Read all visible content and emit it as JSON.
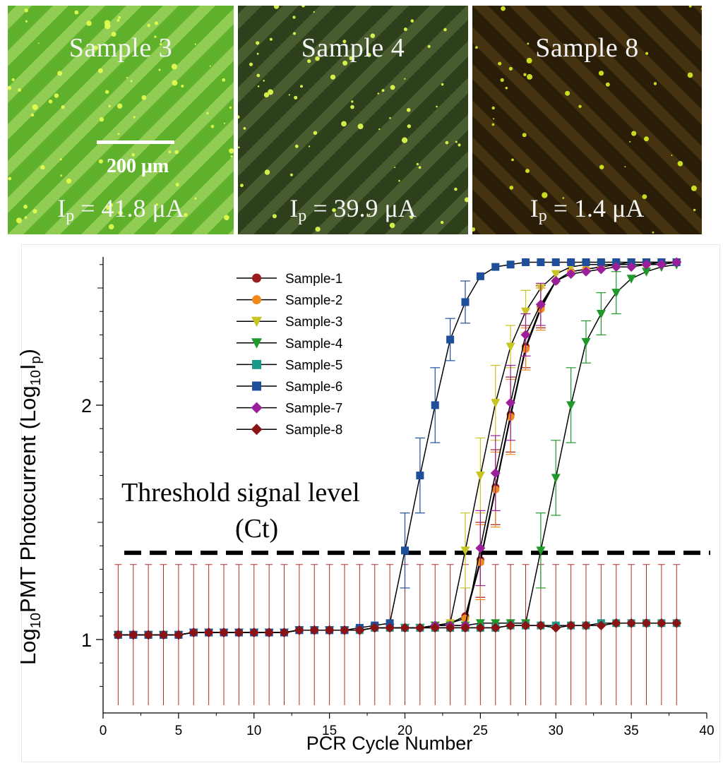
{
  "panels": [
    {
      "title": "Sample 3",
      "ip_prefix": "I",
      "ip_sub": "p",
      "ip_value": " = 41.8 μA",
      "tint": "#5fb02a",
      "stripe": "#9ad25c"
    },
    {
      "title": "Sample 4",
      "ip_prefix": "I",
      "ip_sub": "p",
      "ip_value": " = 39.9 μA",
      "tint": "#2e3f1c",
      "stripe": "#4d6232"
    },
    {
      "title": "Sample 8",
      "ip_prefix": "I",
      "ip_sub": "p",
      "ip_value": " = 1.4 μA",
      "tint": "#2a1d07",
      "stripe": "#4a3712"
    }
  ],
  "scale_bar_label": "200 μm",
  "threshold_label_line1": "Threshold signal level",
  "threshold_label_line2": "(Ct)",
  "ylabel_parts": {
    "log": "Log",
    "sub10": "10",
    "main": "PMT Photocurrent (Log",
    "sub10b": "10",
    "i": "I",
    "subp": "p",
    "close": ")"
  },
  "chart_data": {
    "type": "line",
    "xlabel": "PCR Cycle Number",
    "ylabel": "Log10PMT Photocurrent (Log10Ip)",
    "xlim": [
      0,
      40
    ],
    "ylim": [
      0.72,
      2.65
    ],
    "xticks": [
      0,
      5,
      10,
      15,
      20,
      25,
      30,
      35,
      40
    ],
    "yticks": [
      1,
      2
    ],
    "threshold": 1.37,
    "legend_position": "top-left",
    "series": [
      {
        "name": "Sample-1",
        "color": "#9b1c1c",
        "marker": "circle",
        "x": [
          1,
          2,
          3,
          4,
          5,
          6,
          7,
          8,
          9,
          10,
          11,
          12,
          13,
          14,
          15,
          16,
          17,
          18,
          19,
          20,
          21,
          22,
          23,
          24,
          25,
          26,
          27,
          28,
          29,
          30,
          31,
          32,
          33,
          34,
          35,
          36,
          37,
          38
        ],
        "y": [
          1.02,
          1.02,
          1.02,
          1.02,
          1.02,
          1.03,
          1.03,
          1.03,
          1.03,
          1.03,
          1.03,
          1.03,
          1.04,
          1.04,
          1.04,
          1.04,
          1.04,
          1.05,
          1.05,
          1.05,
          1.05,
          1.06,
          1.07,
          1.1,
          1.34,
          1.65,
          1.96,
          2.25,
          2.42,
          2.53,
          2.57,
          2.58,
          2.59,
          2.6,
          2.6,
          2.6,
          2.61,
          2.61
        ]
      },
      {
        "name": "Sample-2",
        "color": "#f08a1c",
        "marker": "circle",
        "x": [
          1,
          2,
          3,
          4,
          5,
          6,
          7,
          8,
          9,
          10,
          11,
          12,
          13,
          14,
          15,
          16,
          17,
          18,
          19,
          20,
          21,
          22,
          23,
          24,
          25,
          26,
          27,
          28,
          29,
          30,
          31,
          32,
          33,
          34,
          35,
          36,
          37,
          38
        ],
        "y": [
          1.02,
          1.02,
          1.02,
          1.02,
          1.02,
          1.03,
          1.03,
          1.03,
          1.03,
          1.03,
          1.03,
          1.03,
          1.04,
          1.04,
          1.04,
          1.04,
          1.04,
          1.05,
          1.05,
          1.05,
          1.05,
          1.06,
          1.07,
          1.09,
          1.33,
          1.64,
          1.95,
          2.24,
          2.41,
          2.53,
          2.57,
          2.58,
          2.59,
          2.6,
          2.6,
          2.6,
          2.61,
          2.61
        ]
      },
      {
        "name": "Sample-3",
        "color": "#c8c422",
        "marker": "triangle-down",
        "x": [
          1,
          2,
          3,
          4,
          5,
          6,
          7,
          8,
          9,
          10,
          11,
          12,
          13,
          14,
          15,
          16,
          17,
          18,
          19,
          20,
          21,
          22,
          23,
          24,
          25,
          26,
          27,
          28,
          29,
          30,
          31,
          32,
          33,
          34,
          35,
          36,
          37,
          38
        ],
        "y": [
          1.02,
          1.02,
          1.02,
          1.02,
          1.02,
          1.03,
          1.03,
          1.03,
          1.03,
          1.03,
          1.03,
          1.03,
          1.04,
          1.04,
          1.04,
          1.04,
          1.04,
          1.05,
          1.05,
          1.05,
          1.05,
          1.06,
          1.07,
          1.38,
          1.7,
          2.01,
          2.25,
          2.4,
          2.5,
          2.56,
          2.59,
          2.6,
          2.6,
          2.6,
          2.61,
          2.61,
          2.61,
          2.61
        ]
      },
      {
        "name": "Sample-4",
        "color": "#1f9a2a",
        "marker": "triangle-down",
        "x": [
          1,
          2,
          3,
          4,
          5,
          6,
          7,
          8,
          9,
          10,
          11,
          12,
          13,
          14,
          15,
          16,
          17,
          18,
          19,
          20,
          21,
          22,
          23,
          24,
          25,
          26,
          27,
          28,
          29,
          30,
          31,
          32,
          33,
          34,
          35,
          36,
          37,
          38
        ],
        "y": [
          1.02,
          1.02,
          1.02,
          1.02,
          1.02,
          1.03,
          1.03,
          1.03,
          1.03,
          1.03,
          1.03,
          1.03,
          1.04,
          1.04,
          1.04,
          1.04,
          1.04,
          1.05,
          1.05,
          1.05,
          1.05,
          1.06,
          1.06,
          1.06,
          1.07,
          1.07,
          1.07,
          1.07,
          1.38,
          1.69,
          2.0,
          2.27,
          2.39,
          2.48,
          2.54,
          2.57,
          2.59,
          2.6
        ]
      },
      {
        "name": "Sample-5",
        "color": "#1b9a8a",
        "marker": "square",
        "x": [
          1,
          2,
          3,
          4,
          5,
          6,
          7,
          8,
          9,
          10,
          11,
          12,
          13,
          14,
          15,
          16,
          17,
          18,
          19,
          20,
          21,
          22,
          23,
          24,
          25,
          26,
          27,
          28,
          29,
          30,
          31,
          32,
          33,
          34,
          35,
          36,
          37,
          38
        ],
        "y": [
          1.02,
          1.02,
          1.02,
          1.02,
          1.02,
          1.03,
          1.03,
          1.03,
          1.03,
          1.03,
          1.03,
          1.03,
          1.04,
          1.04,
          1.04,
          1.04,
          1.04,
          1.05,
          1.05,
          1.05,
          1.05,
          1.05,
          1.05,
          1.05,
          1.05,
          1.05,
          1.06,
          1.06,
          1.06,
          1.06,
          1.06,
          1.06,
          1.07,
          1.07,
          1.07,
          1.07,
          1.07,
          1.07
        ]
      },
      {
        "name": "Sample-6",
        "color": "#1f4f9a",
        "marker": "square",
        "x": [
          1,
          2,
          3,
          4,
          5,
          6,
          7,
          8,
          9,
          10,
          11,
          12,
          13,
          14,
          15,
          16,
          17,
          18,
          19,
          20,
          21,
          22,
          23,
          24,
          25,
          26,
          27,
          28,
          29,
          30,
          31,
          32,
          33,
          34,
          35,
          36,
          37,
          38
        ],
        "y": [
          1.02,
          1.02,
          1.02,
          1.02,
          1.02,
          1.03,
          1.03,
          1.03,
          1.03,
          1.03,
          1.03,
          1.03,
          1.04,
          1.04,
          1.04,
          1.04,
          1.05,
          1.06,
          1.07,
          1.38,
          1.7,
          2.0,
          2.28,
          2.44,
          2.55,
          2.59,
          2.6,
          2.61,
          2.61,
          2.61,
          2.61,
          2.61,
          2.61,
          2.61,
          2.61,
          2.61,
          2.61,
          2.61
        ]
      },
      {
        "name": "Sample-7",
        "color": "#9b1f9b",
        "marker": "diamond",
        "x": [
          1,
          2,
          3,
          4,
          5,
          6,
          7,
          8,
          9,
          10,
          11,
          12,
          13,
          14,
          15,
          16,
          17,
          18,
          19,
          20,
          21,
          22,
          23,
          24,
          25,
          26,
          27,
          28,
          29,
          30,
          31,
          32,
          33,
          34,
          35,
          36,
          37,
          38
        ],
        "y": [
          1.02,
          1.02,
          1.02,
          1.02,
          1.02,
          1.03,
          1.03,
          1.03,
          1.03,
          1.03,
          1.03,
          1.03,
          1.04,
          1.04,
          1.04,
          1.04,
          1.04,
          1.05,
          1.05,
          1.05,
          1.05,
          1.06,
          1.06,
          1.06,
          1.39,
          1.71,
          2.01,
          2.3,
          2.43,
          2.53,
          2.56,
          2.57,
          2.58,
          2.59,
          2.59,
          2.6,
          2.6,
          2.61
        ]
      },
      {
        "name": "Sample-8",
        "color": "#8a1414",
        "marker": "diamond",
        "x": [
          1,
          2,
          3,
          4,
          5,
          6,
          7,
          8,
          9,
          10,
          11,
          12,
          13,
          14,
          15,
          16,
          17,
          18,
          19,
          20,
          21,
          22,
          23,
          24,
          25,
          26,
          27,
          28,
          29,
          30,
          31,
          32,
          33,
          34,
          35,
          36,
          37,
          38
        ],
        "y": [
          1.02,
          1.02,
          1.02,
          1.02,
          1.02,
          1.03,
          1.03,
          1.03,
          1.03,
          1.03,
          1.03,
          1.03,
          1.04,
          1.04,
          1.04,
          1.04,
          1.04,
          1.05,
          1.05,
          1.05,
          1.05,
          1.05,
          1.05,
          1.05,
          1.05,
          1.05,
          1.06,
          1.06,
          1.06,
          1.05,
          1.06,
          1.06,
          1.06,
          1.07,
          1.07,
          1.07,
          1.07,
          1.07
        ]
      }
    ],
    "errorbar_upper_background": 1.32,
    "errorbar_lower_background": 0.72
  }
}
